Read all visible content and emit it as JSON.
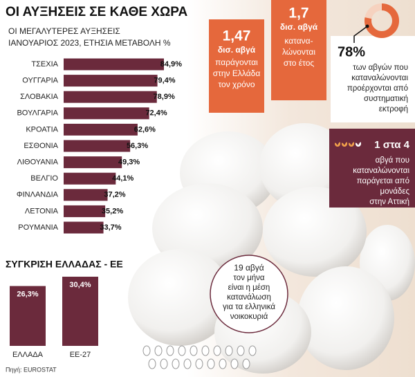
{
  "chart_data": [
    {
      "type": "hbar",
      "title": "ΟΙ ΑΥΞΗΣΕΙΣ ΣΕ ΚΑΘΕ ΧΩΡΑ",
      "subtitle": [
        "ΟΙ ΜΕΓΑΛΥΤΕΡΕΣ ΑΥΞΗΣΕΙΣ",
        "ΙΑΝΟΥΑΡΙΟΣ 2023, ΕΤΗΣΙΑ ΜΕΤΑΒΟΛΗ %"
      ],
      "categories": [
        "ΤΣΕΧΙΑ",
        "ΟΥΓΓΑΡΙΑ",
        "ΣΛΟΒΑΚΙΑ",
        "ΒΟΥΛΓΑΡΙΑ",
        "ΚΡΟΑΤΙΑ",
        "ΕΣΘΟΝΙΑ",
        "ΛΙΘΟΥΑΝΙΑ",
        "ΒΕΛΓΙΟ",
        "ΦΙΝΛΑΝΔΙΑ",
        "ΛΕΤΟΝΙΑ",
        "ΡΟΥΜΑΝΙΑ"
      ],
      "values": [
        84.9,
        79.4,
        78.9,
        72.4,
        62.6,
        56.3,
        49.3,
        44.1,
        37.2,
        35.2,
        33.7
      ],
      "value_labels": [
        "84,9%",
        "79,4%",
        "78,9%",
        "72,4%",
        "62,6%",
        "56,3%",
        "49,3%",
        "44,1%",
        "37,2%",
        "35,2%",
        "33,7%"
      ],
      "color": "#6b2a3c"
    },
    {
      "type": "bar",
      "title": "ΣΥΓΚΡΙΣΗ ΕΛΛΑΔΑΣ - ΕΕ",
      "categories": [
        "ΕΛΛΑΔΑ",
        "ΕΕ-27"
      ],
      "values": [
        26.3,
        30.4
      ],
      "value_labels": [
        "26,3%",
        "30,4%"
      ],
      "color": "#6b2a3c"
    }
  ],
  "production": {
    "number": "1,47",
    "unit": "δισ. αβγά",
    "lines": [
      "παράγονται",
      "στην Ελλάδα",
      "τον χρόνο"
    ]
  },
  "consumption": {
    "number": "1,7",
    "unit": "δισ. αβγά",
    "lines": [
      "κατανα-",
      "λώνονται",
      "στο έτος"
    ]
  },
  "farming": {
    "value": 78,
    "value_label": "78%",
    "lines": [
      "των αβγών που",
      "καταναλώνονται",
      "προέρχονται από",
      "συστηματική",
      "εκτροφή"
    ]
  },
  "attica": {
    "ratio": "1 στα 4",
    "lines": [
      "αβγά που",
      "καταναλώνονται",
      "παράγεται από",
      "μονάδες",
      "στην Αττική"
    ]
  },
  "household": {
    "value": 19,
    "value_label": "19 αβγά",
    "lines": [
      "τον μήνα",
      "είναι η μέση",
      "κατανάλωση",
      "για τα ελληνικά",
      "νοικοκυριά"
    ]
  },
  "source": "Πηγή: EUROSTAT"
}
